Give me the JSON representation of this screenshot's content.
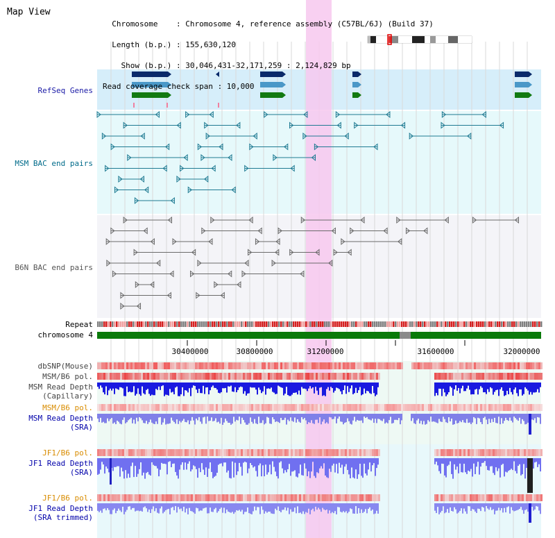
{
  "header": {
    "title": "Map View",
    "lines": [
      "  Chromosome    : Chromosome 4, reference assembly (C57BL/6J) (Build 37)",
      "  Length (b.p.) : 155,630,120",
      "    Show (b.p.) : 30,046,431-32,171,259 : 2,124,829 bp",
      "Read coverage check span : 10,000"
    ]
  },
  "tracks": {
    "refseq": "RefSeq Genes",
    "msm_bac": "MSM BAC end pairs",
    "b6n_bac": "B6N BAC end pairs",
    "repeat": "Repeat",
    "chromosome": "chromosome 4",
    "dbsnp": "dbSNP(Mouse)",
    "msm_b6_pol_1": "MSM/B6 pol.",
    "msm_depth_cap_1": "MSM Read Depth",
    "msm_depth_cap_2": "(Capillary)",
    "msm_b6_pol_2": "MSM/B6 pol.",
    "msm_depth_sra_1": "MSM Read Depth",
    "msm_depth_sra_2": "(SRA)",
    "jf1_b6_pol_1": "JF1/B6 pol.",
    "jf1_depth_sra_1": "JF1 Read Depth",
    "jf1_depth_sra_2": "(SRA)",
    "jf1_b6_pol_2": "JF1/B6 pol.",
    "jf1_depth_trim_1": "JF1 Read Depth",
    "jf1_depth_trim_2": "(SRA trimmed)"
  },
  "axis": {
    "ticks": [
      "30400000",
      "30800000",
      "31200000",
      "31600000",
      "32000000"
    ]
  },
  "colors": {
    "refseq_label": "#1a1aa6",
    "msm_label": "#006b8a",
    "b6n_label": "#555555",
    "pol_label": "#d98c00",
    "depth_label": "#0000aa",
    "highlight": "#f7c8ee",
    "refseq_bg": "#d6eefa",
    "bac_bg": "#e6f9fb",
    "gray_bg": "#f4f4f8"
  }
}
